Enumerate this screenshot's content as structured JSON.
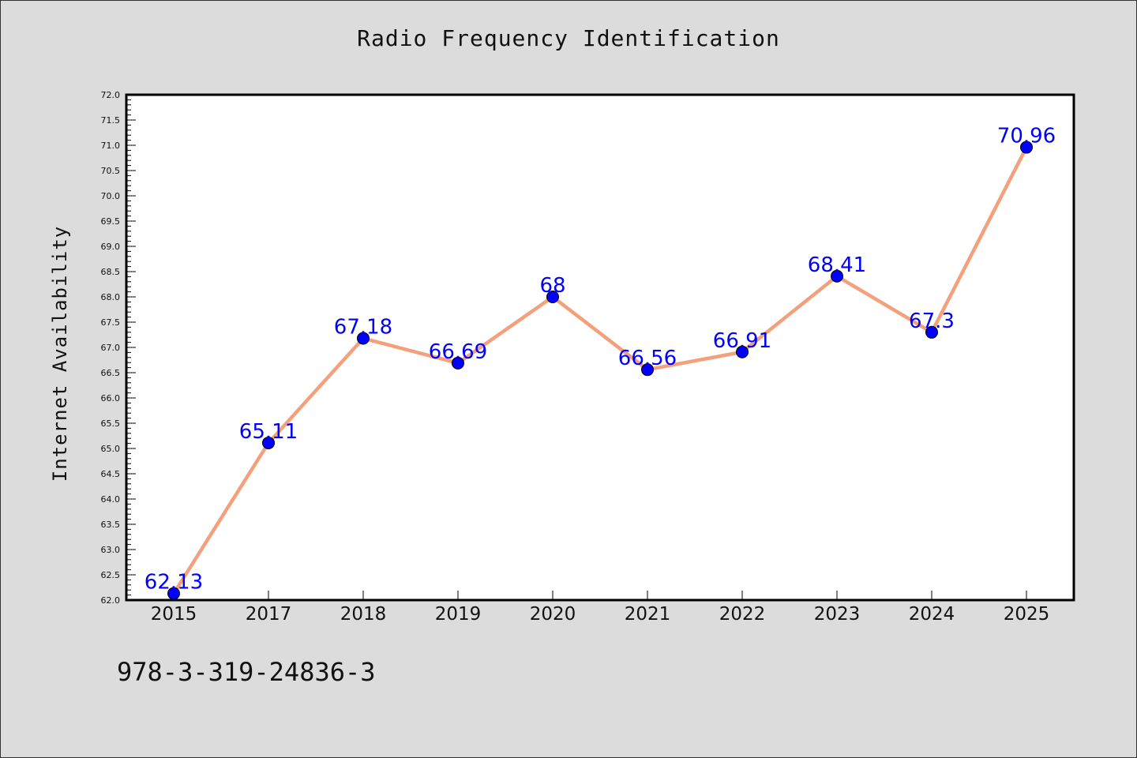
{
  "chart_data": {
    "type": "line",
    "title": "Radio Frequency Identification",
    "xlabel": "",
    "ylabel": "Internet Availability",
    "categories": [
      "2015",
      "2017",
      "2018",
      "2019",
      "2020",
      "2021",
      "2022",
      "2023",
      "2024",
      "2025"
    ],
    "series": [
      {
        "values": [
          62.13,
          65.11,
          67.18,
          66.69,
          68,
          66.56,
          66.91,
          68.41,
          67.3,
          70.96
        ],
        "labels": [
          "62.13",
          "65.11",
          "67.18",
          "66.69",
          "68",
          "66.56",
          "66.91",
          "68.41",
          "67.3",
          "70.96"
        ],
        "line_color": "#f4a07c",
        "marker_color": "#0000ff"
      }
    ],
    "ylim": [
      62.0,
      72.0
    ],
    "yticks": [
      "62.0",
      "62.5",
      "63.0",
      "63.5",
      "64.0",
      "64.5",
      "65.0",
      "65.5",
      "66.0",
      "66.5",
      "67.0",
      "67.5",
      "68.0",
      "68.5",
      "69.0",
      "69.5",
      "70.0",
      "70.5",
      "71.0",
      "71.5",
      "72.0"
    ],
    "grid": false,
    "label_color": "#0000ff"
  },
  "footer": "978-3-319-24836-3"
}
